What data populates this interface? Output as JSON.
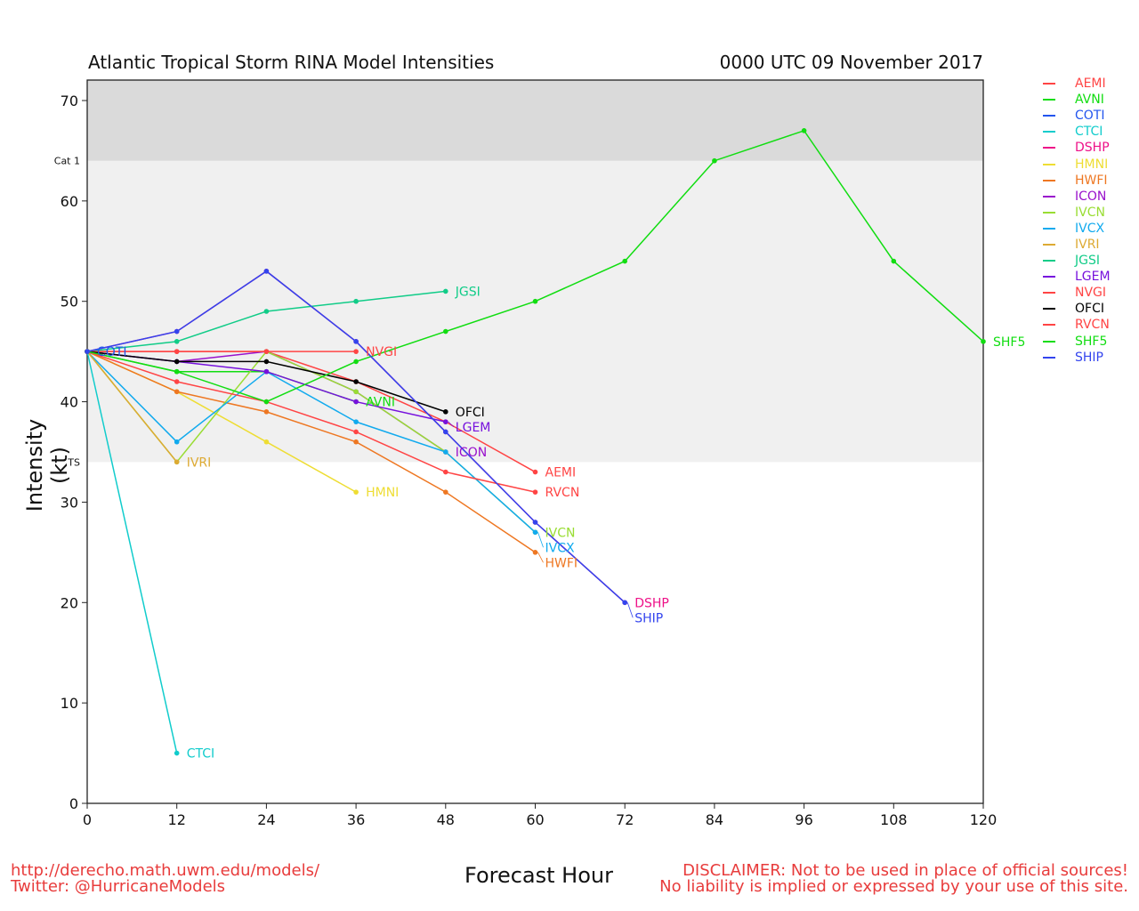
{
  "chart_data": {
    "type": "line",
    "title": "Atlantic Tropical Storm RINA Model Intensities",
    "subtitle": "0000 UTC 09 November 2017",
    "xlabel": "Forecast Hour",
    "ylabel": "Intensity (kt)",
    "xlim": [
      0,
      120
    ],
    "ylim": [
      0,
      72
    ],
    "xticks": [
      0,
      12,
      24,
      36,
      48,
      60,
      72,
      84,
      96,
      108,
      120
    ],
    "yticks": [
      0,
      10,
      20,
      30,
      40,
      50,
      60,
      70
    ],
    "bands": [
      {
        "label": "TS",
        "from": 34,
        "to": 64,
        "color": "#f0f0f0"
      },
      {
        "label": "Cat 1",
        "from": 64,
        "to": 72,
        "color": "#dadada"
      }
    ],
    "legend_position": "right",
    "series": [
      {
        "name": "AEMI",
        "color": "#ff4444",
        "x": [
          0,
          12,
          24,
          36,
          48,
          60
        ],
        "y": [
          45,
          45,
          45,
          42,
          38,
          33
        ]
      },
      {
        "name": "AVNI",
        "color": "#11dd11",
        "x": [
          0,
          12,
          24,
          36
        ],
        "y": [
          45,
          43,
          43,
          40
        ]
      },
      {
        "name": "COTI",
        "color": "#2255ee",
        "x": [
          0
        ],
        "y": [
          45
        ]
      },
      {
        "name": "CTCI",
        "color": "#11cccc",
        "x": [
          0,
          12
        ],
        "y": [
          45,
          5
        ]
      },
      {
        "name": "DSHP",
        "color": "#ee1188",
        "x": [
          0,
          12,
          24,
          36,
          48,
          60,
          72
        ],
        "y": [
          45,
          47,
          53,
          46,
          37,
          28,
          20
        ]
      },
      {
        "name": "HMNI",
        "color": "#eedd33",
        "x": [
          0,
          12,
          24,
          36
        ],
        "y": [
          45,
          41,
          36,
          31
        ]
      },
      {
        "name": "HWFI",
        "color": "#ee7722",
        "x": [
          0,
          12,
          24,
          36,
          48,
          60
        ],
        "y": [
          45,
          41,
          39,
          36,
          31,
          25
        ]
      },
      {
        "name": "ICON",
        "color": "#9911cc",
        "x": [
          0,
          12,
          24,
          36,
          48
        ],
        "y": [
          45,
          44,
          45,
          41,
          35
        ]
      },
      {
        "name": "IVCN",
        "color": "#99dd33",
        "x": [
          0,
          12,
          24,
          36,
          48,
          60
        ],
        "y": [
          45,
          34,
          45,
          41,
          35,
          27
        ]
      },
      {
        "name": "IVCX",
        "color": "#11aaee",
        "x": [
          0,
          12,
          24,
          36,
          48,
          60
        ],
        "y": [
          45,
          36,
          43,
          38,
          35,
          27
        ]
      },
      {
        "name": "IVRI",
        "color": "#ddaa33",
        "x": [
          0,
          12
        ],
        "y": [
          45,
          34
        ]
      },
      {
        "name": "JGSI",
        "color": "#11cc88",
        "x": [
          0,
          12,
          24,
          36,
          48
        ],
        "y": [
          45,
          46,
          49,
          50,
          51
        ]
      },
      {
        "name": "LGEM",
        "color": "#7711dd",
        "x": [
          0,
          12,
          24,
          36,
          48
        ],
        "y": [
          45,
          44,
          43,
          40,
          38
        ]
      },
      {
        "name": "NVGI",
        "color": "#ff4444",
        "x": [
          0,
          12,
          24,
          36
        ],
        "y": [
          45,
          45,
          45,
          45
        ]
      },
      {
        "name": "OFCI",
        "color": "#000000",
        "x": [
          0,
          12,
          24,
          36,
          48
        ],
        "y": [
          45,
          44,
          44,
          42,
          39
        ]
      },
      {
        "name": "RVCN",
        "color": "#ff4444",
        "x": [
          0,
          12,
          24,
          36,
          48,
          60
        ],
        "y": [
          45,
          42,
          40,
          37,
          33,
          31
        ]
      },
      {
        "name": "SHF5",
        "color": "#11dd11",
        "x": [
          0,
          12,
          24,
          36,
          48,
          60,
          72,
          84,
          96,
          108,
          120
        ],
        "y": [
          45,
          43,
          40,
          44,
          47,
          50,
          54,
          64,
          67,
          54,
          46
        ]
      },
      {
        "name": "SHIP",
        "color": "#3344ee",
        "x": [
          0,
          12,
          24,
          36,
          48,
          60,
          72
        ],
        "y": [
          45,
          47,
          53,
          46,
          37,
          28,
          20
        ]
      }
    ]
  },
  "footer": {
    "url": "http://derecho.math.uwm.edu/models/",
    "twitter": "Twitter: @HurricaneModels",
    "disclaimer_1": "DISCLAIMER: Not to be used in place of official sources!",
    "disclaimer_2": "No liability is implied or expressed by your use of this site."
  }
}
